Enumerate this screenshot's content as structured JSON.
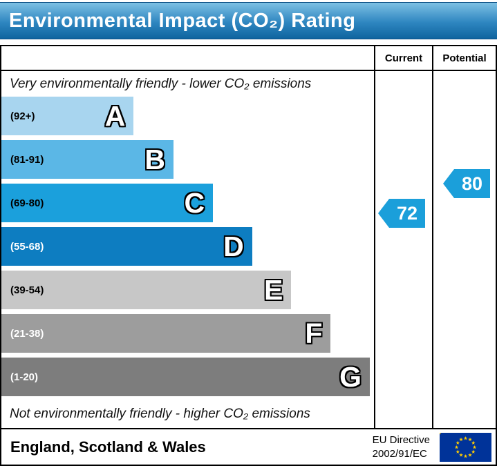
{
  "header": {
    "title": "Environmental Impact (CO₂) Rating"
  },
  "columns": {
    "current": "Current",
    "potential": "Potential"
  },
  "captions": {
    "top": "Very environmentally friendly - lower CO₂ emissions",
    "bottom": "Not environmentally friendly - higher CO₂ emissions"
  },
  "chart_data": {
    "type": "bar",
    "title": "Environmental Impact (CO₂) Rating",
    "bands": [
      {
        "letter": "A",
        "range": "(92+)",
        "color": "#a8d5ef",
        "range_color": "#000000",
        "width_pct": 35.5
      },
      {
        "letter": "B",
        "range": "(81-91)",
        "color": "#5bb7e6",
        "range_color": "#000000",
        "width_pct": 46.2
      },
      {
        "letter": "C",
        "range": "(69-80)",
        "color": "#1ba0dc",
        "range_color": "#000000",
        "width_pct": 56.8
      },
      {
        "letter": "D",
        "range": "(55-68)",
        "color": "#0d7dc1",
        "range_color": "#ffffff",
        "width_pct": 67.3
      },
      {
        "letter": "E",
        "range": "(39-54)",
        "color": "#c7c7c7",
        "range_color": "#000000",
        "width_pct": 77.8
      },
      {
        "letter": "F",
        "range": "(21-38)",
        "color": "#9d9d9d",
        "range_color": "#ffffff",
        "width_pct": 88.4
      },
      {
        "letter": "G",
        "range": "(1-20)",
        "color": "#7d7d7d",
        "range_color": "#ffffff",
        "width_pct": 98.9
      }
    ],
    "current": {
      "value": "72",
      "band": "C"
    },
    "potential": {
      "value": "80",
      "band": "C"
    },
    "pointer_color": "#1b9fda"
  },
  "footer": {
    "region": "England, Scotland & Wales",
    "directive_line1": "EU Directive",
    "directive_line2": "2002/91/EC"
  }
}
